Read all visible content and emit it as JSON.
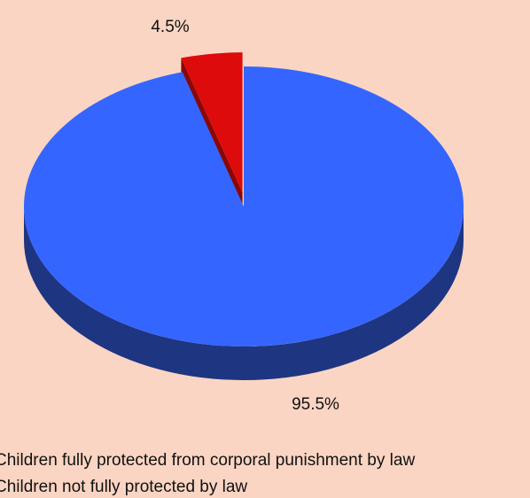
{
  "chart_data": {
    "type": "pie",
    "style": "3d-exploded",
    "title": "",
    "slices": [
      {
        "name": "Children fully protected from corporal punishment by law",
        "value": 4.5,
        "label": "4.5%",
        "color": "#dd0b0b",
        "side_color": "#8a0707",
        "exploded": true
      },
      {
        "name": "Children not fully protected by law",
        "value": 95.5,
        "label": "95.5%",
        "color": "#3565ff",
        "side_color": "#1e3582",
        "exploded": false
      }
    ],
    "legend": {
      "placement": "bottom-left",
      "entries": [
        "Children fully protected from corporal punishment by law",
        "Children not fully protected by law"
      ]
    }
  },
  "background_color": "#fad5c3"
}
